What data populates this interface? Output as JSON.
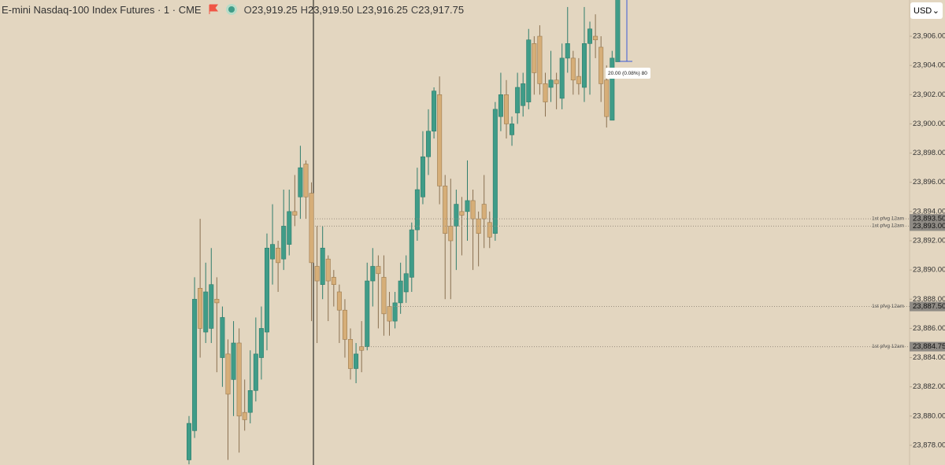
{
  "header": {
    "title": "E-mini Nasdaq-100 Index Futures · 1 · CME",
    "ohlc": [
      {
        "key": "O",
        "value": "23,919.25"
      },
      {
        "key": "H",
        "value": "23,919.50"
      },
      {
        "key": "L",
        "value": "23,916.25"
      },
      {
        "key": "C",
        "value": "23,917.75"
      }
    ],
    "currency": "USD"
  },
  "chart_data": {
    "type": "candlestick",
    "up_color": "#3f9c88",
    "down_color": "#d6ae78",
    "open": [
      23877.0,
      23879.0,
      23888.75,
      23885.75,
      23886.0,
      23888.0,
      23884.0,
      23884.25,
      23882.5,
      23885.0,
      23880.25,
      23880.25,
      23881.75,
      23884.0,
      23885.75,
      23890.75,
      23891.5,
      23890.75,
      23891.75,
      23894.0,
      23895.0,
      23897.25,
      23895.25,
      23890.25,
      23889.0,
      23890.75,
      23889.5,
      23888.5,
      23887.25,
      23885.25,
      23883.25,
      23884.75,
      23884.75,
      23889.25,
      23890.25,
      23889.5,
      23887.5,
      23886.5,
      23887.75,
      23888.5,
      23889.5,
      23892.75,
      23895.0,
      23897.75,
      23899.5,
      23902.0,
      23895.75,
      23893.0,
      23893.0,
      23894.0,
      23894.0,
      23894.75,
      23893.5,
      23894.5,
      23893.25,
      23892.5,
      23900.5,
      23902.0,
      23899.25,
      23900.75,
      23901.25,
      23901.5,
      23905.5,
      23906.0,
      23902.75,
      23902.5,
      23903.0,
      23901.75,
      23904.5,
      23904.5,
      23903.25,
      23902.5,
      23905.5,
      23906.0,
      23905.25,
      23903.0,
      23900.25,
      23904.25
    ],
    "high": [
      23880.0,
      23889.5,
      23893.5,
      23890.5,
      23891.5,
      23889.5,
      23887.5,
      23885.25,
      23886.5,
      23886.0,
      23882.5,
      23884.5,
      23886.75,
      23887.5,
      23892.5,
      23894.5,
      23892.0,
      23895.5,
      23895.5,
      23896.5,
      23898.5,
      23897.5,
      23896.0,
      23893.0,
      23893.0,
      23891.0,
      23890.0,
      23889.0,
      23888.0,
      23886.0,
      23885.0,
      23886.5,
      23890.5,
      23891.5,
      23891.0,
      23891.0,
      23888.5,
      23888.5,
      23890.5,
      23891.0,
      23893.25,
      23897.0,
      23899.5,
      23901.0,
      23902.5,
      23903.25,
      23896.5,
      23896.25,
      23895.5,
      23895.0,
      23897.5,
      23895.5,
      23894.0,
      23896.5,
      23894.0,
      23901.5,
      23903.5,
      23903.0,
      23900.5,
      23903.5,
      23903.5,
      23906.5,
      23906.0,
      23906.75,
      23903.5,
      23905.0,
      23903.5,
      23905.5,
      23908.0,
      23905.0,
      23904.5,
      23908.0,
      23907.0,
      23907.5,
      23906.0,
      23904.0,
      23905.0,
      23909.5
    ],
    "low": [
      23876.7,
      23878.5,
      23884.0,
      23885.0,
      23885.0,
      23883.0,
      23882.0,
      23877.0,
      23880.0,
      23877.5,
      23879.0,
      23879.5,
      23881.0,
      23882.5,
      23884.5,
      23889.0,
      23888.5,
      23890.0,
      23891.0,
      23893.0,
      23893.5,
      23893.5,
      23886.5,
      23885.0,
      23888.0,
      23886.5,
      23887.5,
      23885.0,
      23884.0,
      23882.5,
      23882.25,
      23883.0,
      23884.5,
      23887.5,
      23886.0,
      23885.5,
      23885.5,
      23886.0,
      23887.0,
      23887.75,
      23888.5,
      23892.0,
      23894.5,
      23896.5,
      23899.0,
      23894.5,
      23888.0,
      23888.0,
      23890.0,
      23891.0,
      23892.0,
      23890.0,
      23890.25,
      23891.5,
      23891.5,
      23892.0,
      23899.5,
      23899.0,
      23898.5,
      23900.0,
      23900.5,
      23901.0,
      23902.0,
      23902.0,
      23900.5,
      23901.5,
      23901.0,
      23901.0,
      23903.5,
      23902.0,
      23902.0,
      23901.5,
      23902.0,
      23904.5,
      23901.5,
      23899.75,
      23900.25,
      23904.25
    ],
    "close": [
      23879.5,
      23888.0,
      23886.0,
      23888.5,
      23889.0,
      23887.75,
      23886.75,
      23881.5,
      23885.0,
      23880.0,
      23879.75,
      23881.75,
      23884.25,
      23886.0,
      23891.5,
      23891.75,
      23890.5,
      23893.0,
      23894.0,
      23893.75,
      23897.0,
      23895.0,
      23890.5,
      23889.25,
      23891.5,
      23889.25,
      23889.0,
      23887.25,
      23885.25,
      23883.25,
      23884.25,
      23884.5,
      23889.25,
      23890.25,
      23889.75,
      23887.0,
      23886.5,
      23887.75,
      23889.25,
      23889.75,
      23892.75,
      23895.5,
      23897.75,
      23899.5,
      23902.25,
      23895.75,
      23892.5,
      23892.0,
      23894.5,
      23893.75,
      23894.75,
      23893.5,
      23892.5,
      23893.5,
      23892.25,
      23901.0,
      23902.0,
      23900.0,
      23900.0,
      23902.5,
      23902.75,
      23905.75,
      23903.5,
      23902.75,
      23901.5,
      23903.0,
      23902.75,
      23904.5,
      23905.5,
      23903.0,
      23902.75,
      23905.5,
      23906.5,
      23905.75,
      23902.75,
      23900.5,
      23904.5,
      23909.0
    ],
    "ylim": [
      23876.65,
      23908.48
    ],
    "yticks": [
      {
        "value": 23878,
        "label": "23,878.00"
      },
      {
        "value": 23880,
        "label": "23,880.00"
      },
      {
        "value": 23882,
        "label": "23,882.00"
      },
      {
        "value": 23884,
        "label": "23,884.00"
      },
      {
        "value": 23886,
        "label": "23,886.00"
      },
      {
        "value": 23888,
        "label": "23,888.00"
      },
      {
        "value": 23890,
        "label": "23,890.00"
      },
      {
        "value": 23892,
        "label": "23,892.00"
      },
      {
        "value": 23894,
        "label": "23,894.00"
      },
      {
        "value": 23896,
        "label": "23,896.00"
      },
      {
        "value": 23898,
        "label": "23,898.00"
      },
      {
        "value": 23900,
        "label": "23,900.00"
      },
      {
        "value": 23902,
        "label": "23,902.00"
      },
      {
        "value": 23904,
        "label": "23,904.00"
      },
      {
        "value": 23906,
        "label": "23,906.00"
      }
    ],
    "levels": [
      {
        "name": "1st pfvg 12am",
        "value": 23893.5,
        "label": "23,893.50"
      },
      {
        "name": "1st pfvg 12am",
        "value": 23893,
        "label": "23,893.00"
      },
      {
        "name": "1st pfvg 12am",
        "value": 23887.5,
        "label": "23,887.50"
      },
      {
        "name": "1st pfvg 12am",
        "value": 23884.75,
        "label": "23,884.75"
      }
    ],
    "measure_label": "20.00 (0.08%) 80"
  }
}
